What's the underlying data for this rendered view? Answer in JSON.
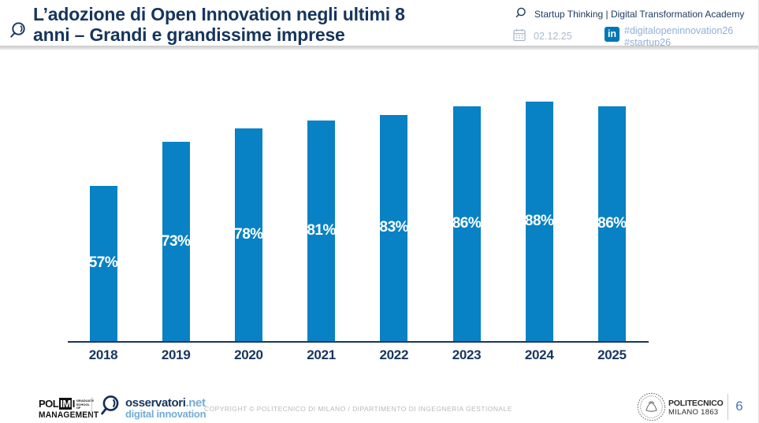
{
  "header": {
    "title_lines": [
      "L’adozione di Open Innovation negli ultimi 8",
      "anni – Grandi e grandissime imprese"
    ],
    "event": "Startup Thinking | Digital Transformation Academy",
    "date": "02.12.25",
    "linkedin_label": "in",
    "hashtags": [
      "#digitalopeninnovation26",
      "#startup26"
    ]
  },
  "chart_data": {
    "type": "bar",
    "title": "",
    "xlabel": "",
    "ylabel": "",
    "categories": [
      "2018",
      "2019",
      "2020",
      "2021",
      "2022",
      "2023",
      "2024",
      "2025"
    ],
    "values": [
      57,
      73,
      78,
      81,
      83,
      86,
      88,
      86
    ],
    "labels": [
      "57%",
      "73%",
      "78%",
      "81%",
      "83%",
      "86%",
      "88%",
      "86%"
    ],
    "ylim": [
      0,
      100
    ],
    "grid": false,
    "legend": null,
    "bar_color": "#0882C4",
    "label_color": "#FFFFFF",
    "axis_color": "#17365D"
  },
  "footer": {
    "polimi_pre": "POL",
    "polimi_box": "IM",
    "polimi_post": "I",
    "polimi_small": "GRADUATE SCHOOL OF",
    "polimi_line2": "MANAGEMENT",
    "osservatori_name": "osservatori",
    "osservatori_net": ".net",
    "osservatori_sub": "digital innovation",
    "copyright": "COPYRIGHT © POLITECNICO DI MILANO / DIPARTIMENTO DI INGEGNERIA GESTIONALE",
    "politecnico_line1": "POLITECNICO",
    "politecnico_line2": "MILANO 1863",
    "page_number": "6"
  },
  "colors": {
    "navy": "#16355D",
    "bar_blue": "#0882C4",
    "hashtag_blue": "#8FB0D8",
    "date_gray": "#A9BAC9",
    "linkedin_blue": "#0077B5",
    "copyright_gray": "#B9B9B9",
    "page_blue": "#4479B3"
  },
  "icons": {
    "title_icon": "magnifier",
    "event_icon": "magnifier",
    "date_icon": "calendar",
    "social_icon": "linkedin",
    "osservatori_icon": "magnifier",
    "politecnico_icon": "seal"
  }
}
